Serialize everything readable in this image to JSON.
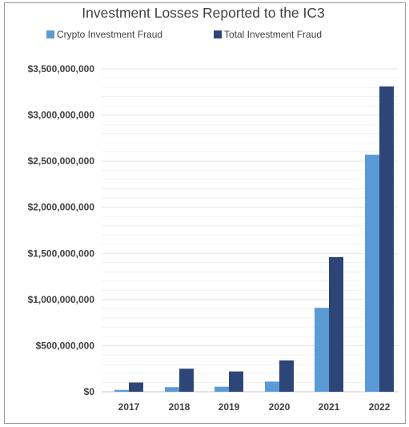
{
  "chart_data": {
    "type": "bar",
    "title": "Investment Losses Reported to the IC3",
    "categories": [
      "2017",
      "2018",
      "2019",
      "2020",
      "2021",
      "2022"
    ],
    "series": [
      {
        "name": "Crypto Investment Fraud",
        "color": "#5b9bd5",
        "values": [
          20000000,
          50000000,
          55000000,
          110000000,
          910000000,
          2570000000
        ]
      },
      {
        "name": "Total Investment Fraud",
        "color": "#2e4577",
        "values": [
          100000000,
          250000000,
          220000000,
          340000000,
          1460000000,
          3310000000
        ]
      }
    ],
    "ylim": [
      0,
      3500000000
    ],
    "yticks": [
      0,
      500000000,
      1000000000,
      1500000000,
      2000000000,
      2500000000,
      3000000000,
      3500000000
    ],
    "ytick_labels": [
      "$0",
      "$500,000,000",
      "$1,000,000,000",
      "$1,500,000,000",
      "$2,000,000,000",
      "$2,500,000,000",
      "$3,000,000,000",
      "$3,500,000,000"
    ],
    "legend": "top",
    "grid": true
  }
}
